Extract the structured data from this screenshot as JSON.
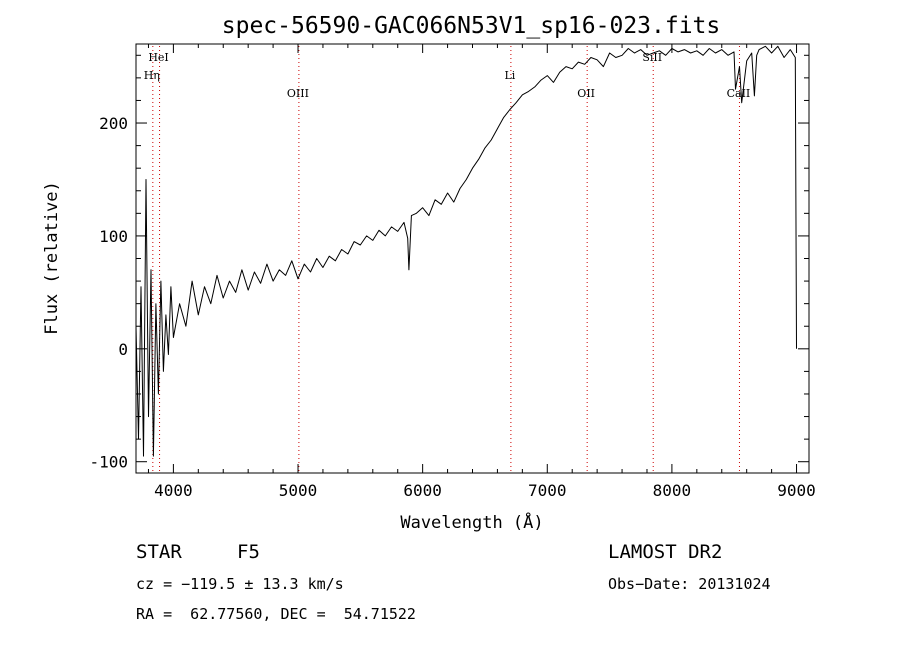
{
  "chart_data": {
    "type": "line",
    "title": "spec-56590-GAC066N53V1_sp16-023.fits",
    "xlabel": "Wavelength (Å)",
    "ylabel": "Flux (relative)",
    "xlim": [
      3700,
      9100
    ],
    "ylim": [
      -110,
      270
    ],
    "xticks": [
      4000,
      5000,
      6000,
      7000,
      8000,
      9000
    ],
    "yticks": [
      -100,
      0,
      100,
      200
    ],
    "grid": false,
    "line_color": "#000000",
    "marker_color": "#cc0000",
    "spectral_lines": [
      {
        "label": "HeI",
        "x": 3889,
        "level": 1
      },
      {
        "label": "Hη",
        "x": 3835,
        "level": 2
      },
      {
        "label": "OIII",
        "x": 5007,
        "level": 3
      },
      {
        "label": "Li",
        "x": 6708,
        "level": 2
      },
      {
        "label": "OII",
        "x": 7320,
        "level": 3
      },
      {
        "label": "SiII",
        "x": 7850,
        "level": 1
      },
      {
        "label": "CaII",
        "x": 8542,
        "level": 3
      }
    ],
    "series": [
      {
        "x": [
          3700,
          3720,
          3740,
          3760,
          3780,
          3800,
          3820,
          3840,
          3860,
          3880,
          3900,
          3920,
          3940,
          3960,
          3980,
          4000,
          4050,
          4100,
          4150,
          4200,
          4250,
          4300,
          4350,
          4400,
          4450,
          4500,
          4550,
          4600,
          4650,
          4700,
          4750,
          4800,
          4850,
          4900,
          4950,
          5000,
          5050,
          5100,
          5150,
          5200,
          5250,
          5300,
          5350,
          5400,
          5450,
          5500,
          5550,
          5600,
          5650,
          5700,
          5750,
          5800,
          5850,
          5880,
          5890,
          5896,
          5910,
          5950,
          6000,
          6050,
          6100,
          6150,
          6200,
          6250,
          6300,
          6350,
          6400,
          6450,
          6500,
          6550,
          6600,
          6650,
          6700,
          6750,
          6800,
          6850,
          6900,
          6950,
          7000,
          7050,
          7100,
          7150,
          7200,
          7250,
          7300,
          7350,
          7400,
          7450,
          7500,
          7550,
          7600,
          7650,
          7700,
          7750,
          7800,
          7850,
          7900,
          7950,
          8000,
          8050,
          8100,
          8150,
          8200,
          8250,
          8300,
          8350,
          8400,
          8450,
          8498,
          8510,
          8542,
          8560,
          8600,
          8640,
          8662,
          8680,
          8700,
          8750,
          8800,
          8850,
          8900,
          8950,
          8990,
          9000
        ],
        "y": [
          20,
          -80,
          55,
          -95,
          150,
          -60,
          70,
          -95,
          40,
          -40,
          60,
          -20,
          30,
          -5,
          55,
          10,
          40,
          20,
          60,
          30,
          55,
          40,
          65,
          45,
          60,
          50,
          70,
          52,
          68,
          58,
          75,
          60,
          70,
          65,
          78,
          62,
          75,
          68,
          80,
          72,
          82,
          78,
          88,
          84,
          95,
          92,
          100,
          96,
          105,
          100,
          108,
          104,
          112,
          98,
          70,
          85,
          118,
          120,
          125,
          118,
          132,
          128,
          138,
          130,
          142,
          150,
          160,
          168,
          178,
          185,
          195,
          205,
          212,
          218,
          225,
          228,
          232,
          238,
          242,
          236,
          245,
          250,
          248,
          254,
          252,
          258,
          256,
          250,
          262,
          258,
          260,
          266,
          262,
          265,
          260,
          262,
          264,
          260,
          266,
          263,
          265,
          262,
          264,
          260,
          266,
          262,
          265,
          260,
          263,
          230,
          250,
          218,
          255,
          262,
          224,
          260,
          265,
          268,
          262,
          268,
          258,
          265,
          258,
          0
        ]
      }
    ]
  },
  "info": {
    "object_class": "STAR",
    "subclass": "F5",
    "survey": "LAMOST DR2",
    "redshift": "cz = −119.5 ± 13.3 km/s",
    "obs_date": "Obs−Date: 20131024",
    "coords": "RA =  62.77560, DEC =  54.71522"
  }
}
